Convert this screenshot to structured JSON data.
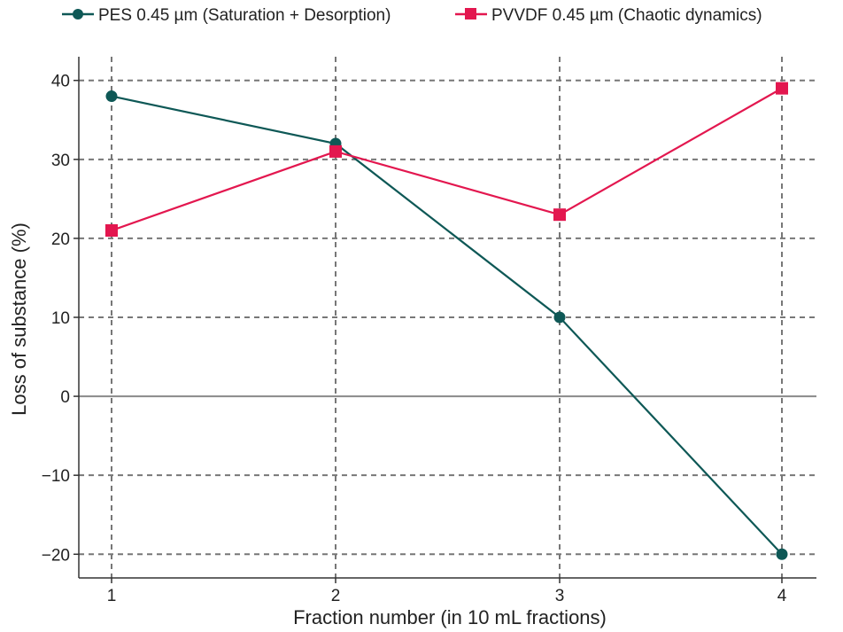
{
  "chart_data": {
    "type": "line",
    "title": "",
    "xlabel": "Fraction number (in 10 mL fractions)",
    "ylabel": "Loss of substance (%)",
    "x": [
      1,
      2,
      3,
      4
    ],
    "x_tick_labels": [
      "1",
      "2",
      "3",
      "4"
    ],
    "ylim": [
      -23,
      43
    ],
    "y_ticks": [
      40,
      30,
      20,
      10,
      0,
      -10,
      -20
    ],
    "y_tick_labels": [
      "40",
      "30",
      "20",
      "10",
      "0",
      "−10",
      "−20"
    ],
    "grid": true,
    "legend_position": "top",
    "series": [
      {
        "name": "PES 0.45 µm (Saturation + Desorption)",
        "color": "#0e5856",
        "marker": "circle",
        "values": [
          38,
          32,
          10,
          -20
        ]
      },
      {
        "name": "PVVDF 0.45 µm (Chaotic dynamics)",
        "color": "#e3174f",
        "marker": "square",
        "values": [
          21,
          31,
          23,
          39
        ]
      }
    ]
  }
}
